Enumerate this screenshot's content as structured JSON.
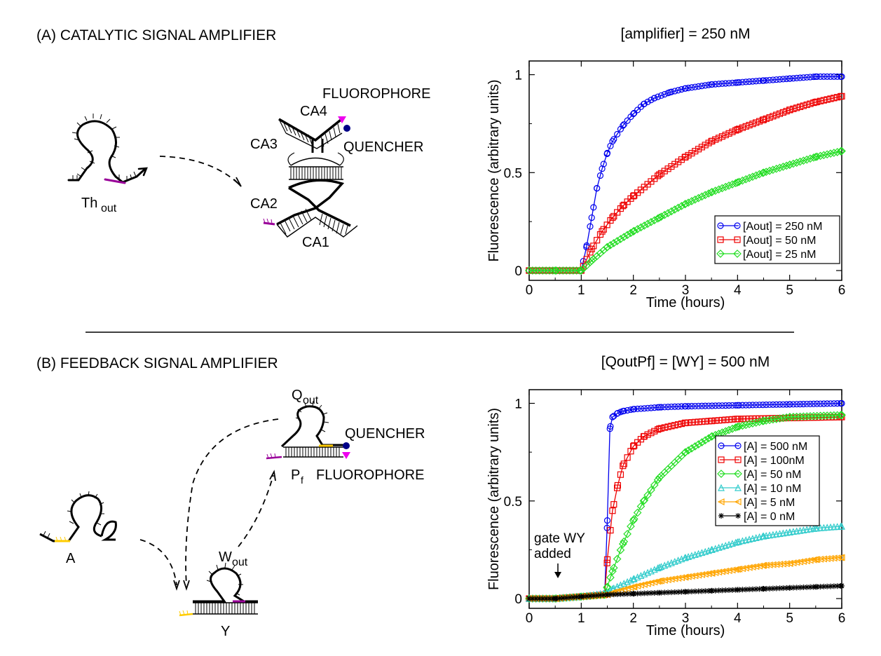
{
  "panel_a": {
    "heading": "(A) CATALYTIC SIGNAL AMPLIFIER",
    "diagram": {
      "th_label": "Th",
      "th_sub": "out",
      "fluorophore": "FLUOROPHORE",
      "quencher": "QUENCHER",
      "ca1": "CA1",
      "ca2": "CA2",
      "ca3": "CA3",
      "ca4": "CA4"
    }
  },
  "panel_b": {
    "heading": "(B) FEEDBACK SIGNAL AMPLIFIER",
    "diagram": {
      "q_label": "Q",
      "q_sub": "out",
      "quencher": "QUENCHER",
      "p_label": "P",
      "p_sub": "f",
      "fluorophore": "FLUOROPHORE",
      "a_label": "A",
      "w_label": "W",
      "w_sub": "out",
      "y_label": "Y"
    },
    "annotation": [
      "gate WY",
      "added"
    ]
  },
  "colors": {
    "blue": "#0000ee",
    "red": "#ee0000",
    "green": "#22dd22",
    "cyan": "#33cccc",
    "orange": "#ffa500",
    "black": "#000000",
    "purple": "#990099",
    "yellow": "#ffcc00",
    "magenta": "#ee00ee",
    "navy": "#000088"
  },
  "chart_data": [
    {
      "type": "line",
      "title": "[amplifier] = 250 nM",
      "xlabel": "Time (hours)",
      "ylabel": "Fluorescence (arbitrary units)",
      "xlim": [
        0,
        6
      ],
      "ylim": [
        -0.05,
        1.07
      ],
      "xticks": [
        "0",
        "1",
        "2",
        "3",
        "4",
        "5",
        "6"
      ],
      "yticks": [
        "0",
        "0.5",
        "1"
      ],
      "legend": "bottom-right",
      "series": [
        {
          "name": "[Aout] = 250 nM",
          "color": "#0000ee",
          "marker": "circle",
          "x": [
            0,
            0.5,
            1.0,
            1.1,
            1.2,
            1.3,
            1.4,
            1.5,
            1.6,
            1.8,
            2.0,
            2.2,
            2.4,
            2.7,
            3.0,
            3.5,
            4.0,
            4.5,
            5.0,
            5.5,
            6.0
          ],
          "y": [
            0,
            0,
            0,
            0.12,
            0.27,
            0.42,
            0.52,
            0.6,
            0.66,
            0.74,
            0.8,
            0.85,
            0.88,
            0.91,
            0.93,
            0.95,
            0.96,
            0.97,
            0.98,
            0.99,
            0.99
          ]
        },
        {
          "name": "[Aout] = 50 nM",
          "color": "#ee0000",
          "marker": "square",
          "x": [
            0,
            0.5,
            1.0,
            1.2,
            1.4,
            1.6,
            1.8,
            2.0,
            2.5,
            3.0,
            3.5,
            4.0,
            4.5,
            5.0,
            5.5,
            6.0
          ],
          "y": [
            0,
            0,
            0,
            0.11,
            0.2,
            0.27,
            0.33,
            0.38,
            0.49,
            0.58,
            0.66,
            0.72,
            0.77,
            0.82,
            0.86,
            0.89
          ]
        },
        {
          "name": "[Aout] = 25 nM",
          "color": "#22dd22",
          "marker": "diamond",
          "x": [
            0,
            0.5,
            1.0,
            1.2,
            1.5,
            2.0,
            2.5,
            3.0,
            3.5,
            4.0,
            4.5,
            5.0,
            5.5,
            6.0
          ],
          "y": [
            0,
            0,
            0,
            0.05,
            0.12,
            0.2,
            0.27,
            0.34,
            0.4,
            0.45,
            0.5,
            0.54,
            0.58,
            0.61
          ]
        }
      ]
    },
    {
      "type": "line",
      "title": "[QoutPf] = [WY] = 500 nM",
      "xlabel": "Time (hours)",
      "ylabel": "Fluorescence (arbitrary units)",
      "xlim": [
        0,
        6
      ],
      "ylim": [
        -0.05,
        1.07
      ],
      "xticks": [
        "0",
        "1",
        "2",
        "3",
        "4",
        "5",
        "6"
      ],
      "yticks": [
        "0",
        "0.5",
        "1"
      ],
      "legend": "right",
      "series": [
        {
          "name": "[A] = 500 nM",
          "color": "#0000ee",
          "marker": "circle",
          "x": [
            0,
            0.5,
            1.0,
            1.45,
            1.5,
            1.55,
            1.6,
            1.7,
            1.8,
            2.0,
            2.5,
            3.0,
            4.0,
            5.0,
            6.0
          ],
          "y": [
            0,
            0,
            0.01,
            0.02,
            0.4,
            0.87,
            0.93,
            0.95,
            0.96,
            0.97,
            0.98,
            0.985,
            0.99,
            0.995,
            1.0
          ]
        },
        {
          "name": "[A] = 100nM",
          "color": "#ee0000",
          "marker": "square",
          "x": [
            0,
            0.5,
            1.0,
            1.45,
            1.5,
            1.6,
            1.7,
            1.8,
            2.0,
            2.2,
            2.5,
            3.0,
            3.5,
            4.0,
            5.0,
            6.0
          ],
          "y": [
            0,
            0,
            0.01,
            0.02,
            0.2,
            0.45,
            0.58,
            0.68,
            0.78,
            0.83,
            0.87,
            0.9,
            0.91,
            0.92,
            0.925,
            0.93
          ]
        },
        {
          "name": "[A] = 50 nM",
          "color": "#22dd22",
          "marker": "diamond",
          "x": [
            0,
            0.5,
            1.0,
            1.45,
            1.5,
            1.6,
            1.8,
            2.0,
            2.2,
            2.5,
            3.0,
            3.5,
            4.0,
            4.5,
            5.0,
            6.0
          ],
          "y": [
            0,
            0,
            0.01,
            0.02,
            0.06,
            0.14,
            0.28,
            0.4,
            0.5,
            0.62,
            0.75,
            0.83,
            0.88,
            0.91,
            0.93,
            0.94
          ]
        },
        {
          "name": "[A] = 10 nM",
          "color": "#33cccc",
          "marker": "triangle-up",
          "x": [
            0,
            0.5,
            1.0,
            1.5,
            1.6,
            2.0,
            2.5,
            3.0,
            3.5,
            4.0,
            4.5,
            5.0,
            5.5,
            6.0
          ],
          "y": [
            0,
            0,
            0.01,
            0.03,
            0.05,
            0.1,
            0.16,
            0.21,
            0.25,
            0.29,
            0.32,
            0.34,
            0.36,
            0.37
          ]
        },
        {
          "name": "[A] = 5 nM",
          "color": "#ffa500",
          "marker": "triangle-left",
          "x": [
            0,
            0.5,
            1.0,
            1.5,
            1.6,
            2.0,
            2.5,
            3.0,
            3.5,
            4.0,
            4.5,
            5.0,
            5.5,
            6.0
          ],
          "y": [
            0,
            0,
            0.01,
            0.02,
            0.03,
            0.06,
            0.09,
            0.11,
            0.13,
            0.15,
            0.17,
            0.18,
            0.2,
            0.21
          ]
        },
        {
          "name": "[A] = 0 nM",
          "color": "#000000",
          "marker": "star",
          "x": [
            0,
            0.5,
            1.0,
            1.5,
            2.0,
            2.5,
            3.0,
            3.5,
            4.0,
            4.5,
            5.0,
            5.5,
            6.0
          ],
          "y": [
            0,
            0,
            0.01,
            0.02,
            0.025,
            0.03,
            0.035,
            0.04,
            0.045,
            0.05,
            0.055,
            0.06,
            0.065
          ]
        }
      ]
    }
  ]
}
